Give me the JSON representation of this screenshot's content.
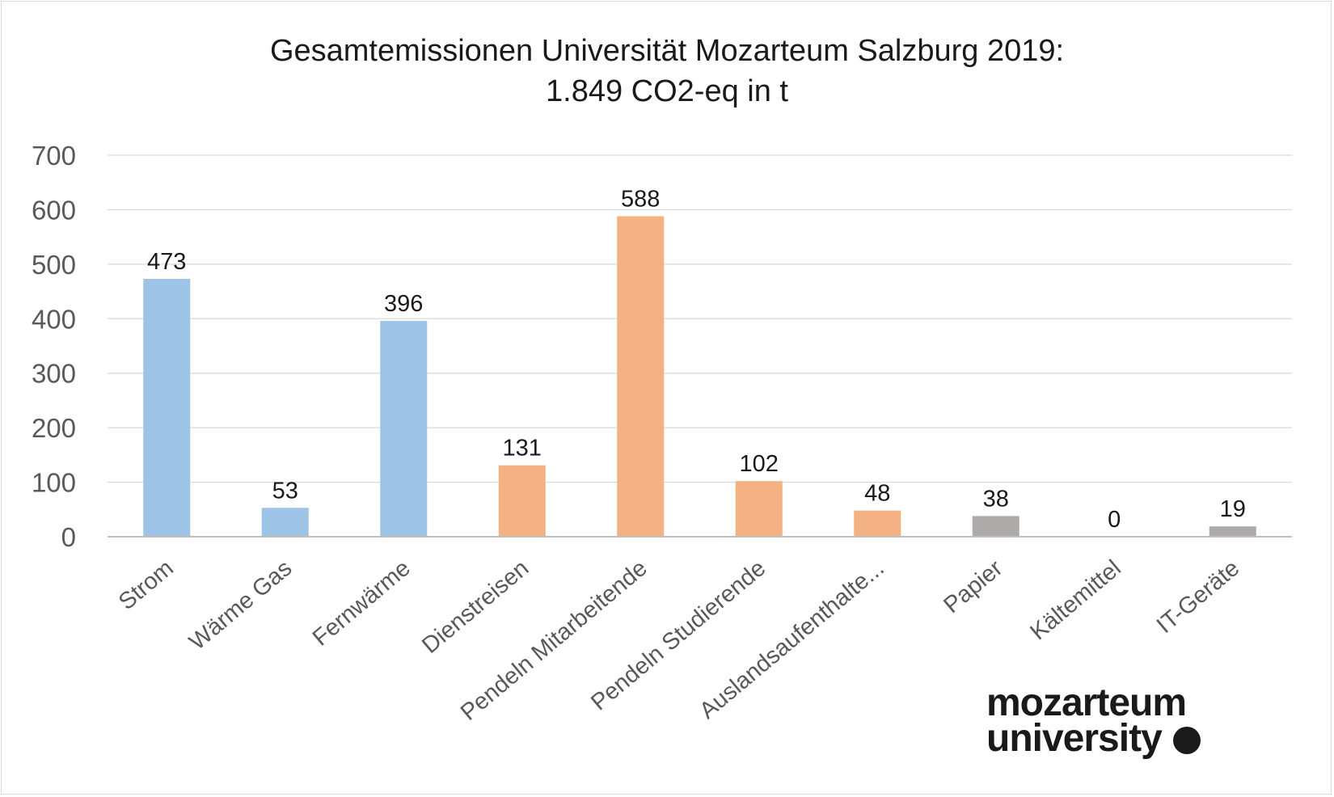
{
  "chart_data": {
    "type": "bar",
    "title": "Gesamtemissionen Universität Mozarteum Salzburg 2019:",
    "subtitle": "1.849 CO2-eq in t",
    "categories": [
      "Strom",
      "Wärme Gas",
      "Fernwärme",
      "Dienstreisen",
      "Pendeln Mitarbeitende",
      "Pendeln Studierende",
      "Auslandsaufenthalte...",
      "Papier",
      "Kältemittel",
      "IT-Geräte"
    ],
    "values": [
      473,
      53,
      396,
      131,
      588,
      102,
      48,
      38,
      0,
      19
    ],
    "colors": [
      "#9dc3e6",
      "#9dc3e6",
      "#9dc3e6",
      "#f4b183",
      "#f4b183",
      "#f4b183",
      "#f4b183",
      "#aeaaaa",
      "#aeaaaa",
      "#aeaaaa"
    ],
    "ylim": [
      0,
      700
    ],
    "yticks": [
      0,
      100,
      200,
      300,
      400,
      500,
      600,
      700
    ],
    "grid": true,
    "legend": "none"
  },
  "logo": {
    "line1": "mozarteum",
    "line2": "university"
  }
}
